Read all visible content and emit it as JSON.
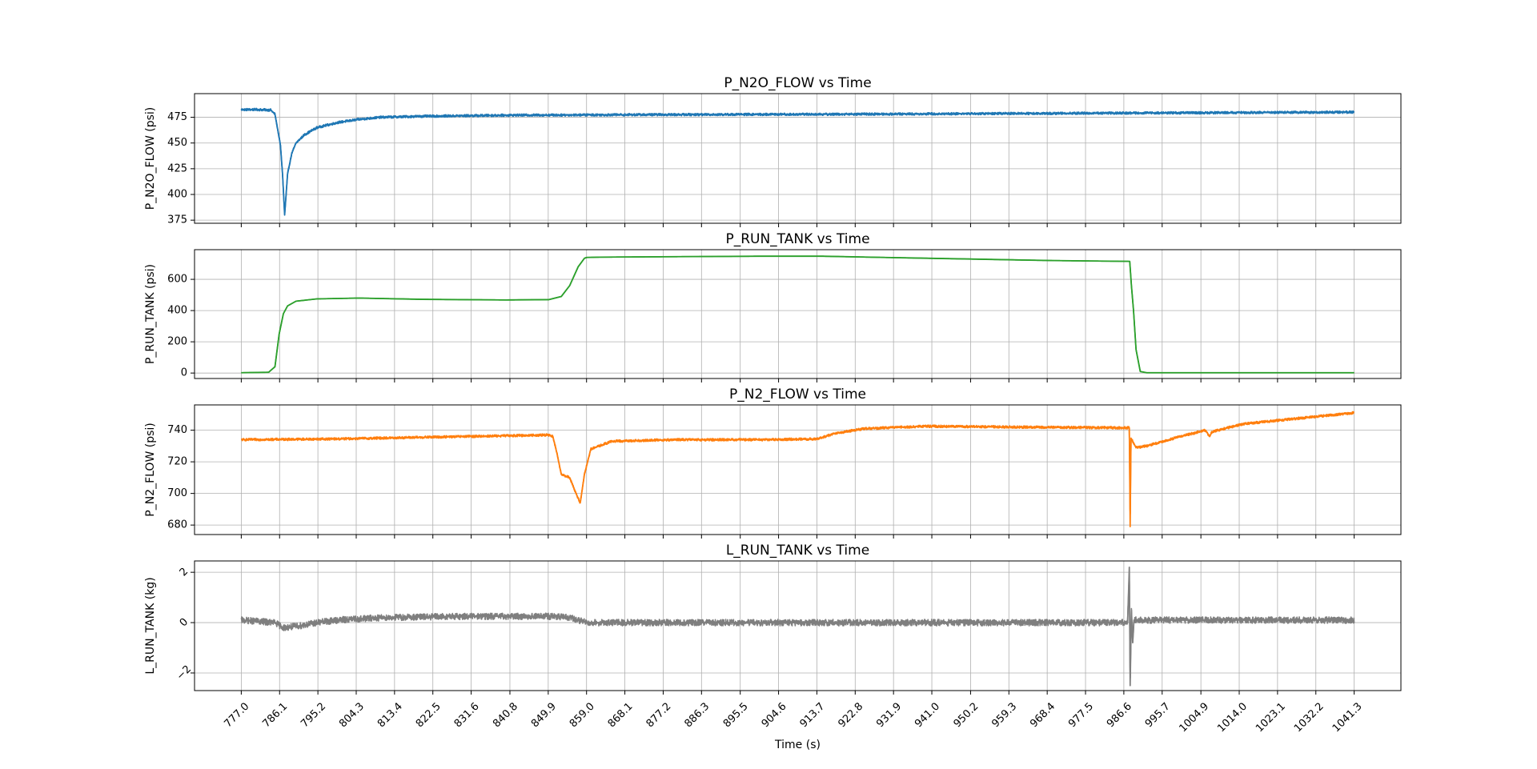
{
  "chart_data": [
    {
      "type": "line",
      "title": "P_N2O_FLOW vs Time",
      "ylabel": "P_N2O_FLOW (psi)",
      "xlim": [
        765.9,
        1052.4
      ],
      "ylim": [
        372,
        498
      ],
      "yticks": [
        375,
        400,
        425,
        450,
        475
      ],
      "grid": true,
      "color": "#1f77b4",
      "noise": 1.2,
      "series": [
        {
          "x": [
            777.0,
            781.0,
            784.0,
            785.0,
            785.7,
            786.3,
            786.8,
            787.3,
            788.0,
            789.0,
            790.0,
            792.0,
            795.0,
            800.0,
            805.0,
            810.0,
            820.0,
            840.0,
            870.0,
            920.0,
            980.0,
            1041.3
          ],
          "y": [
            482.5,
            482.5,
            482.0,
            478.0,
            462.0,
            448.0,
            420.0,
            380.0,
            420.0,
            440.0,
            450.0,
            458.0,
            465.0,
            470.0,
            473.0,
            475.0,
            476.0,
            477.0,
            477.5,
            478.0,
            479.0,
            480.0
          ]
        }
      ]
    },
    {
      "type": "line",
      "title": "P_RUN_TANK vs Time",
      "ylabel": "P_RUN_TANK (psi)",
      "xlim": [
        765.9,
        1052.4
      ],
      "ylim": [
        -35,
        790
      ],
      "yticks": [
        0,
        200,
        400,
        600
      ],
      "grid": true,
      "color": "#2ca02c",
      "noise": 0,
      "series": [
        {
          "x": [
            777.0,
            783.5,
            785.0,
            786.0,
            787.0,
            788.0,
            790.0,
            795.0,
            805.0,
            820.0,
            840.0,
            850.0,
            853.0,
            855.0,
            857.0,
            858.5,
            859.0,
            862.0,
            880.0,
            900.0,
            915.0,
            930.0,
            950.0,
            970.0,
            988.0,
            988.4,
            988.9,
            989.5,
            990.5,
            992.0,
            1000.0,
            1041.3
          ],
          "y": [
            2,
            5,
            40,
            250,
            380,
            430,
            460,
            475,
            480,
            472,
            468,
            470,
            490,
            560,
            680,
            735,
            740,
            742,
            745,
            748,
            748,
            740,
            730,
            720,
            715,
            560,
            400,
            150,
            10,
            2,
            2,
            2
          ]
        }
      ]
    },
    {
      "type": "line",
      "title": "P_N2_FLOW vs Time",
      "ylabel": "P_N2_FLOW (psi)",
      "xlim": [
        765.9,
        1052.4
      ],
      "ylim": [
        674,
        756
      ],
      "yticks": [
        680,
        700,
        720,
        740
      ],
      "grid": true,
      "color": "#ff7f0e",
      "noise": 0.8,
      "series": [
        {
          "x": [
            777.0,
            800.0,
            830.0,
            850.0,
            851.0,
            852.0,
            853.0,
            855.0,
            856.5,
            857.5,
            858.5,
            860.0,
            865.0,
            880.0,
            900.0,
            914.0,
            918.0,
            925.0,
            940.0,
            960.0,
            987.9,
            988.1,
            988.3,
            989.5,
            992.0,
            1000.0,
            1006.0,
            1007.0,
            1007.5,
            1015.0,
            1030.0,
            1041.3
          ],
          "y": [
            734,
            734.5,
            736,
            737,
            736,
            725,
            712,
            710,
            700,
            694,
            712,
            728,
            733,
            734,
            734,
            734.5,
            738,
            741,
            742.5,
            742,
            741.5,
            679,
            735,
            729,
            730,
            736,
            740,
            736,
            739,
            744,
            748,
            751
          ]
        }
      ]
    },
    {
      "type": "line",
      "title": "L_RUN_TANK vs Time",
      "ylabel": "L_RUN_TANK (kg)",
      "xlabel": "Time (s)",
      "xlim": [
        765.9,
        1052.4
      ],
      "ylim": [
        -2.7,
        2.45
      ],
      "yticks": [
        -2,
        0,
        2
      ],
      "grid": true,
      "color": "#7f7f7f",
      "noise": 0.13,
      "series": [
        {
          "x": [
            777.0,
            785.0,
            787.0,
            790.0,
            795.0,
            800.0,
            810.0,
            830.0,
            850.0,
            855.0,
            858.0,
            860.0,
            880.0,
            920.0,
            987.5,
            987.9,
            988.1,
            988.4,
            988.7,
            989.0,
            990.0,
            1000.0,
            1041.3
          ],
          "y": [
            0.1,
            0.0,
            -0.2,
            -0.15,
            0.0,
            0.1,
            0.2,
            0.25,
            0.25,
            0.2,
            0.05,
            0.0,
            0.0,
            0.0,
            0.0,
            2.2,
            -2.5,
            0.5,
            -0.8,
            0.1,
            0.1,
            0.1,
            0.1
          ]
        }
      ]
    }
  ],
  "x_axis": {
    "label": "Time (s)",
    "ticks": [
      "777.0",
      "786.1",
      "795.2",
      "804.3",
      "813.4",
      "822.5",
      "831.6",
      "840.8",
      "849.9",
      "859.0",
      "868.1",
      "877.2",
      "886.3",
      "895.5",
      "904.6",
      "913.7",
      "922.8",
      "931.9",
      "941.0",
      "950.2",
      "959.3",
      "968.4",
      "977.5",
      "986.6",
      "995.7",
      "1004.9",
      "1014.0",
      "1023.1",
      "1032.2",
      "1041.3"
    ]
  }
}
